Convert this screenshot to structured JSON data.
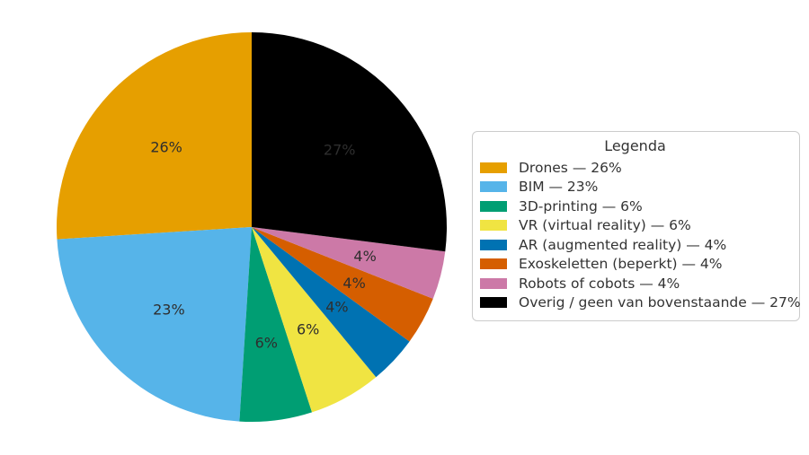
{
  "chart_data": {
    "type": "pie",
    "legend_title": "Legenda",
    "labels": [
      "Drones",
      "BIM",
      "3D-printing",
      "VR (virtual reality)",
      "AR (augmented reality)",
      "Exoskeletten (beperkt)",
      "Robots of cobots",
      "Overig / geen van bovenstaande"
    ],
    "values": [
      26,
      23,
      6,
      6,
      4,
      4,
      4,
      27
    ],
    "percent_labels": [
      "26%",
      "23%",
      "6%",
      "6%",
      "4%",
      "4%",
      "4%",
      "27%"
    ],
    "legend_entries": [
      "Drones — 26%",
      "BIM — 23%",
      "3D-printing — 6%",
      "VR (virtual reality) — 6%",
      "AR (augmented reality) — 4%",
      "Exoskeletten (beperkt) — 4%",
      "Robots of cobots — 4%",
      "Overig / geen van bovenstaande — 27%"
    ],
    "colors": [
      "#E69F00",
      "#56B4E9",
      "#009E73",
      "#F0E442",
      "#0072B2",
      "#D55E00",
      "#CC79A7",
      "#000000"
    ],
    "label_color": "#2e2e2e",
    "background": "#ffffff",
    "start_angle": 90,
    "counterclockwise": true,
    "label_radius_fraction": 0.6,
    "legend_position": "right"
  }
}
